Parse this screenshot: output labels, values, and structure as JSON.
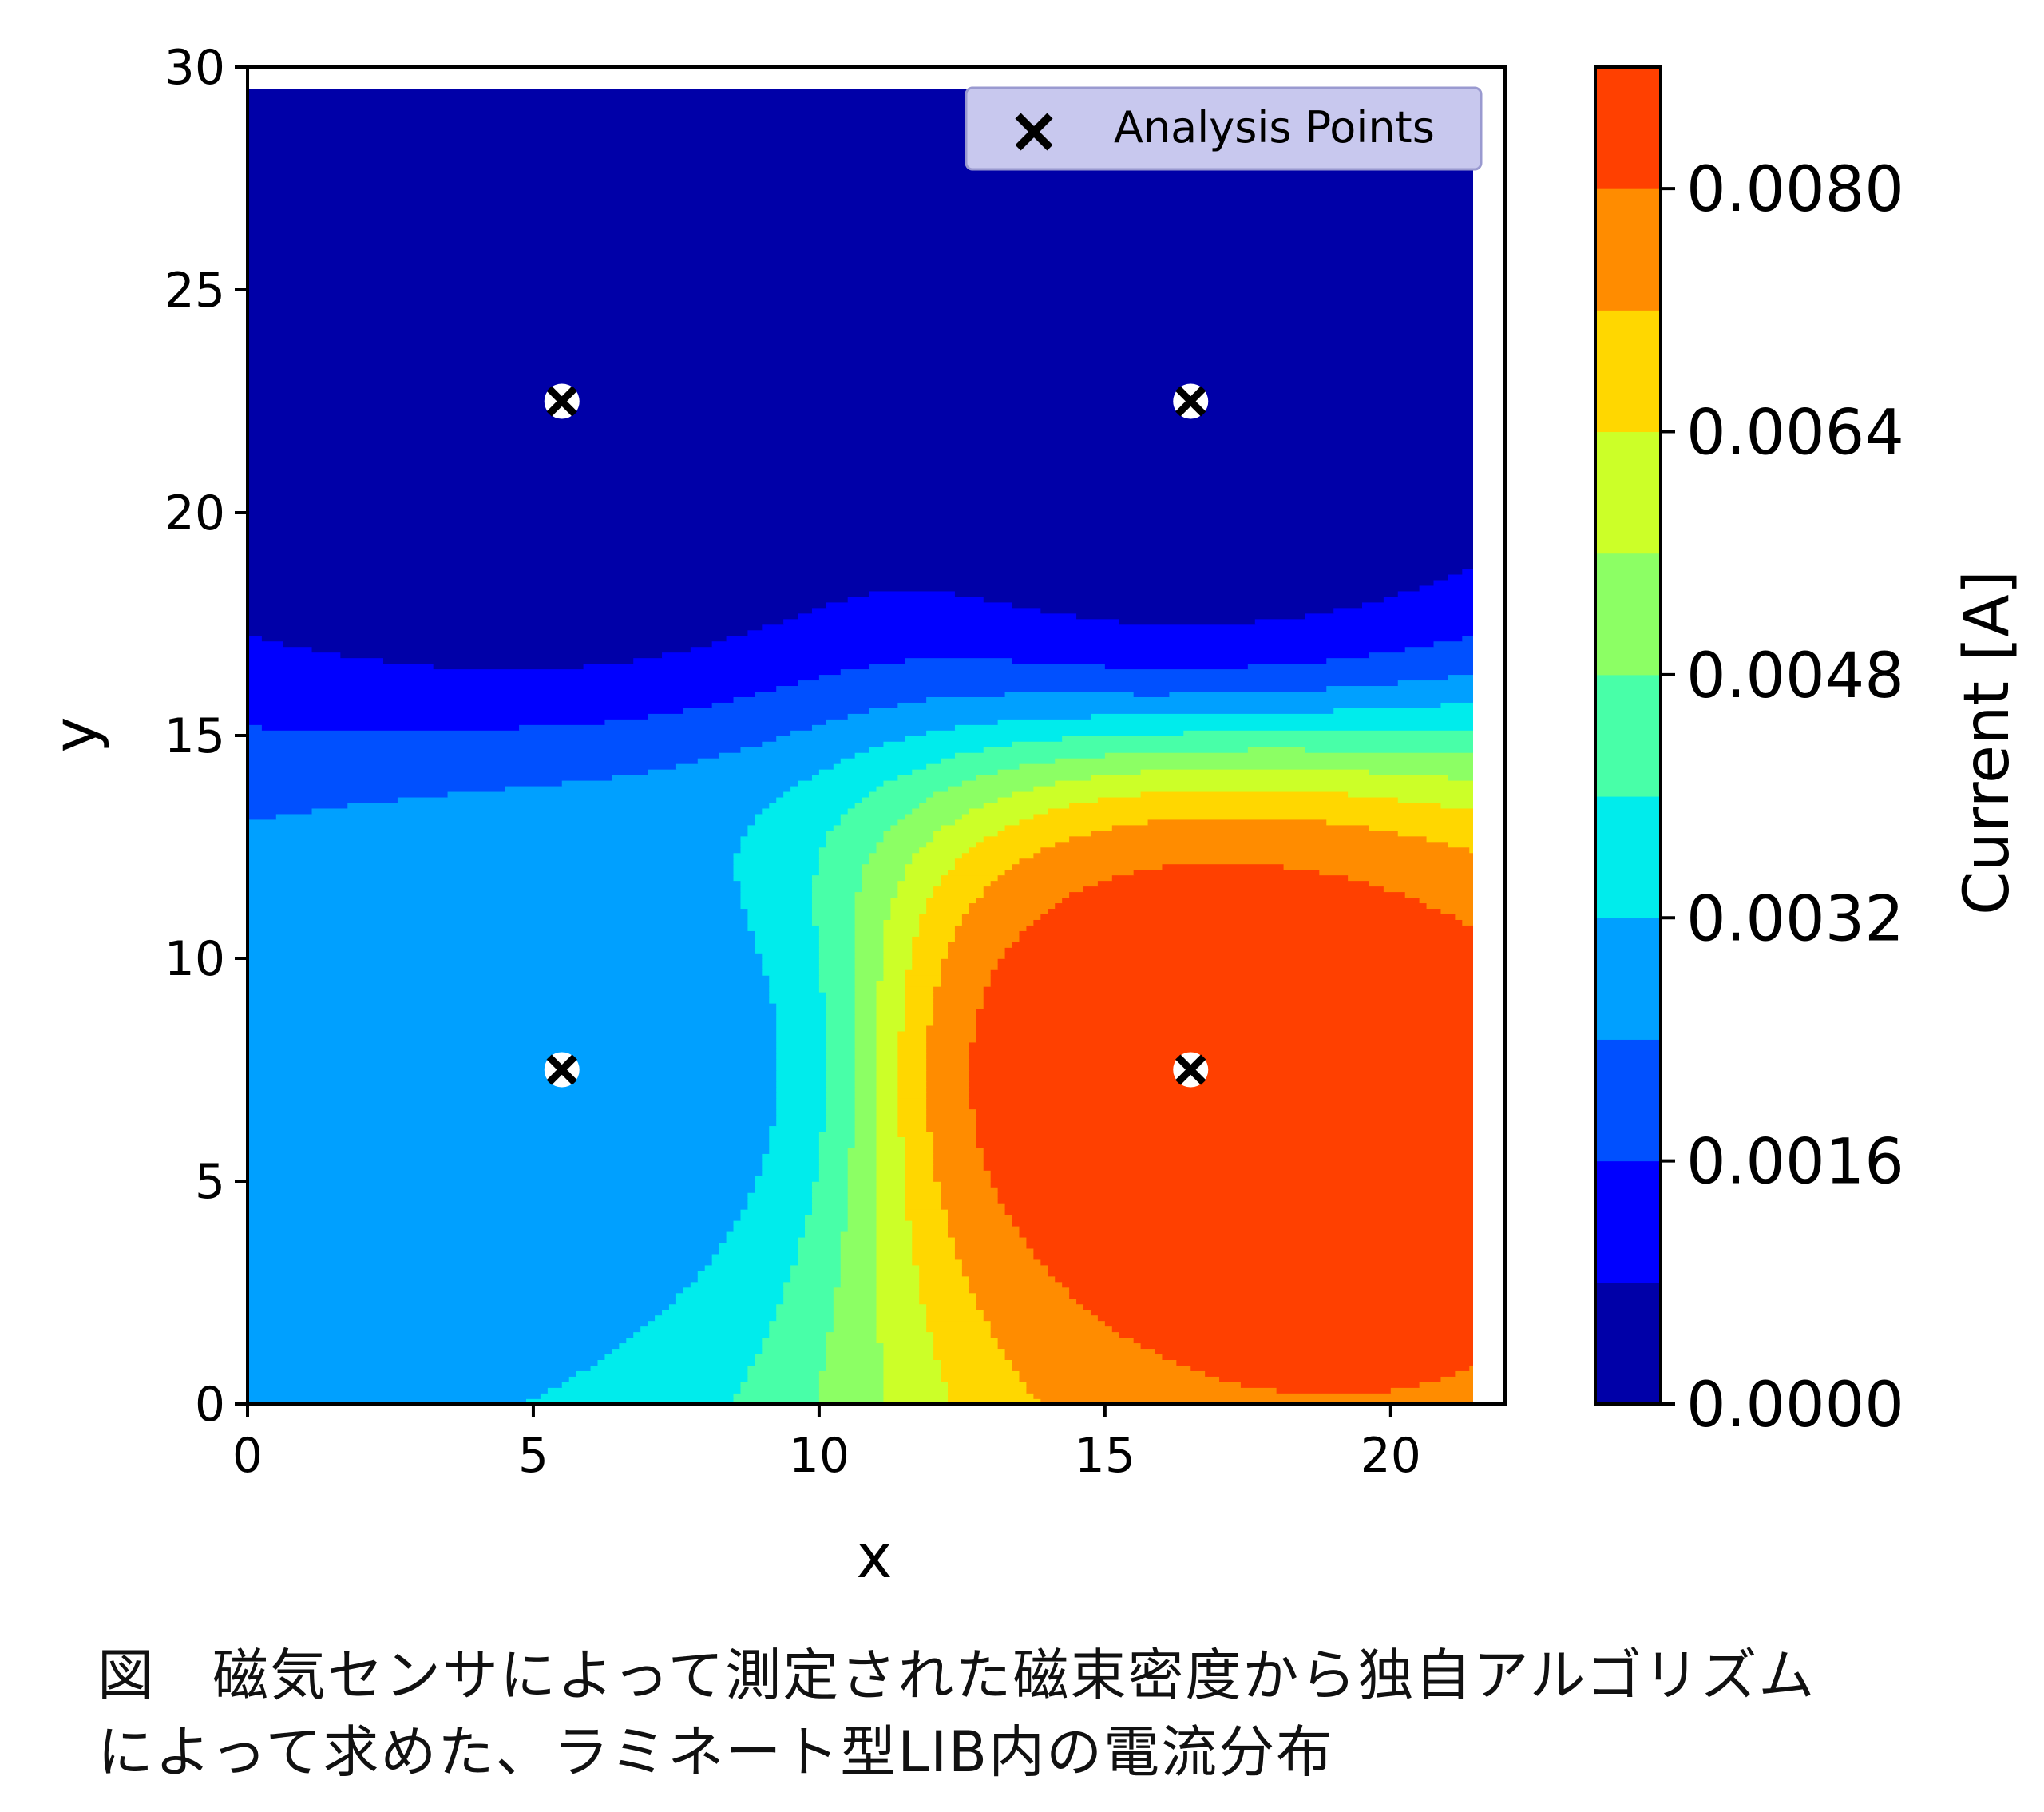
{
  "chart_data": {
    "type": "heatmap",
    "subtype": "filled-contour",
    "xlabel": "x",
    "ylabel": "y",
    "xlim": [
      0,
      22
    ],
    "ylim": [
      0,
      30
    ],
    "xticks": [
      0,
      5,
      10,
      15,
      20
    ],
    "yticks": [
      0,
      5,
      10,
      15,
      20,
      25,
      30
    ],
    "colorbar": {
      "label": "Current [A]",
      "vmin": 0.0,
      "vmax": 0.0088,
      "ticks": [
        "0.0000",
        "0.0016",
        "0.0032",
        "0.0048",
        "0.0064",
        "0.0080"
      ],
      "tick_values": [
        0.0,
        0.0016,
        0.0032,
        0.0048,
        0.0064,
        0.008
      ],
      "level_step": 0.0008,
      "colors": [
        "#0000a8",
        "#0000ff",
        "#0050ff",
        "#00a0ff",
        "#00ecec",
        "#48ffa8",
        "#8cff64",
        "#ccff28",
        "#ffd700",
        "#ff8c00",
        "#ff4000"
      ]
    },
    "analysis_points": {
      "legend_label": "Analysis Points",
      "legend_position": "upper-right",
      "marker": "x",
      "points": [
        {
          "x": 5.5,
          "y": 22.5,
          "value": 0.0002
        },
        {
          "x": 16.5,
          "y": 22.5,
          "value": 0.0003
        },
        {
          "x": 5.5,
          "y": 7.5,
          "value": 0.0028
        },
        {
          "x": 16.5,
          "y": 7.5,
          "value": 0.0085
        }
      ]
    },
    "field_samples": {
      "description_note": "",
      "x": [
        0,
        5.5,
        11,
        16.5,
        21.5
      ],
      "y": [
        0,
        7.5,
        15,
        22.5,
        29.5
      ]
    }
  },
  "caption": {
    "line1": "図　磁気センサによって測定された磁束密度から独自アルゴリズム",
    "line2": "によって求めた、ラミネート型LIB内の電流分布"
  }
}
